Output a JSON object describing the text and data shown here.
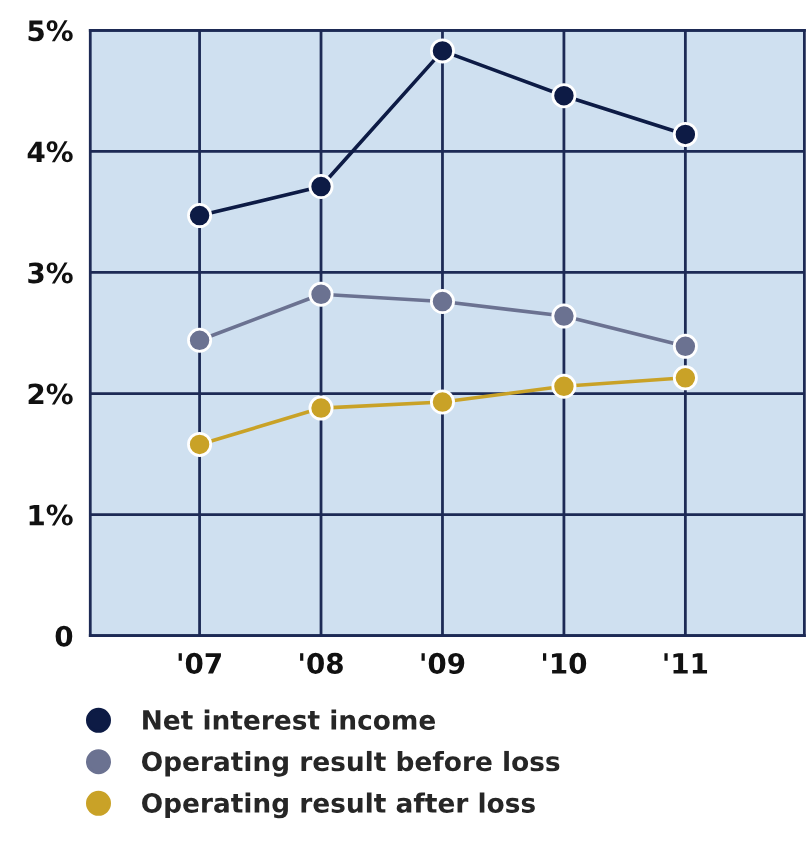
{
  "chart_data": {
    "type": "line",
    "categories": [
      "'07",
      "'08",
      "'09",
      "'10",
      "'11"
    ],
    "series": [
      {
        "name": "Net interest income",
        "color": "#0d1b45",
        "values": [
          3.47,
          3.71,
          4.83,
          4.46,
          4.14
        ]
      },
      {
        "name": "Operating result before loss",
        "color": "#6b7291",
        "values": [
          2.44,
          2.82,
          2.76,
          2.64,
          2.39
        ]
      },
      {
        "name": "Operating result after loss",
        "color": "#c9a227",
        "values": [
          1.58,
          1.88,
          1.93,
          2.06,
          2.13
        ]
      }
    ],
    "ylim": [
      0,
      5
    ],
    "yticks": [
      0,
      {
        "value": 1,
        "label": "1%"
      },
      {
        "value": 2,
        "label": "2%"
      },
      {
        "value": 3,
        "label": "3%"
      },
      {
        "value": 4,
        "label": "4%"
      },
      {
        "value": 5,
        "label": "5%"
      }
    ],
    "grid": true,
    "legend": "bottom",
    "marker": "circle",
    "line_style": "solid"
  }
}
